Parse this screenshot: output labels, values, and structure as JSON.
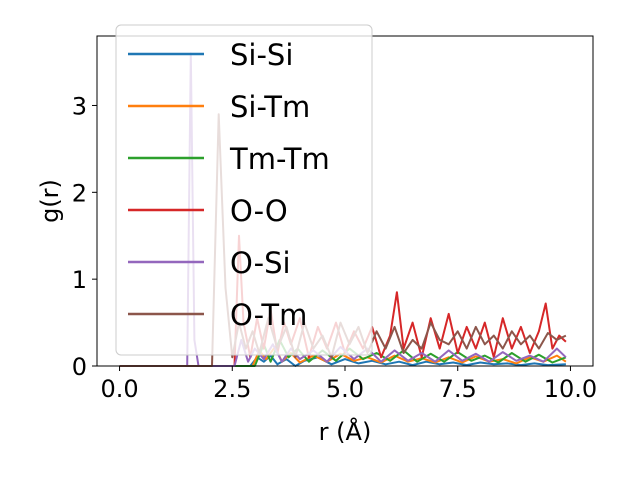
{
  "chart_data": {
    "type": "line",
    "xlabel": "r (Å)",
    "ylabel": "g(r)",
    "xlim": [
      -0.5,
      10.5
    ],
    "ylim": [
      0,
      3.8
    ],
    "xticks": [
      0.0,
      2.5,
      5.0,
      7.5,
      10.0
    ],
    "xtick_labels": [
      "0.0",
      "2.5",
      "5.0",
      "7.5",
      "10.0"
    ],
    "yticks": [
      0,
      1,
      2,
      3
    ],
    "ytick_labels": [
      "0",
      "1",
      "2",
      "3"
    ],
    "grid": false,
    "legend_position": "upper-left",
    "series": [
      {
        "name": "Si-Si",
        "color": "#1f77b4",
        "points": [
          [
            0,
            0
          ],
          [
            2.9,
            0
          ],
          [
            3.05,
            0.1
          ],
          [
            3.2,
            0.05
          ],
          [
            3.35,
            0.12
          ],
          [
            3.5,
            0.02
          ],
          [
            3.7,
            0.08
          ],
          [
            3.9,
            0
          ],
          [
            4.1,
            0.06
          ],
          [
            4.4,
            0.1
          ],
          [
            4.7,
            0.02
          ],
          [
            5.0,
            0.08
          ],
          [
            5.3,
            0.03
          ],
          [
            5.6,
            0.06
          ],
          [
            5.9,
            0.02
          ],
          [
            6.2,
            0.05
          ],
          [
            6.5,
            0.01
          ],
          [
            6.8,
            0.05
          ],
          [
            7.1,
            0.02
          ],
          [
            7.4,
            0.04
          ],
          [
            7.7,
            0.01
          ],
          [
            8.0,
            0.04
          ],
          [
            8.3,
            0.02
          ],
          [
            8.6,
            0.03
          ],
          [
            8.9,
            0.01
          ],
          [
            9.2,
            0.03
          ],
          [
            9.5,
            0.01
          ],
          [
            9.9,
            0.02
          ]
        ]
      },
      {
        "name": "Si-Tm",
        "color": "#ff7f0e",
        "points": [
          [
            0,
            0
          ],
          [
            2.95,
            0
          ],
          [
            3.1,
            0.18
          ],
          [
            3.25,
            0.08
          ],
          [
            3.45,
            0.22
          ],
          [
            3.6,
            0.05
          ],
          [
            3.8,
            0.15
          ],
          [
            4.0,
            0.04
          ],
          [
            4.3,
            0.12
          ],
          [
            4.6,
            0.05
          ],
          [
            4.9,
            0.14
          ],
          [
            5.2,
            0.06
          ],
          [
            5.5,
            0.1
          ],
          [
            5.8,
            0.04
          ],
          [
            6.1,
            0.12
          ],
          [
            6.4,
            0.05
          ],
          [
            6.7,
            0.09
          ],
          [
            7.0,
            0.04
          ],
          [
            7.3,
            0.1
          ],
          [
            7.6,
            0.04
          ],
          [
            7.9,
            0.11
          ],
          [
            8.2,
            0.05
          ],
          [
            8.5,
            0.08
          ],
          [
            8.8,
            0.03
          ],
          [
            9.1,
            0.1
          ],
          [
            9.4,
            0.05
          ],
          [
            9.7,
            0.12
          ],
          [
            9.9,
            0.05
          ]
        ]
      },
      {
        "name": "Tm-Tm",
        "color": "#2ca02c",
        "points": [
          [
            0,
            0
          ],
          [
            3.0,
            0
          ],
          [
            3.2,
            0.25
          ],
          [
            3.35,
            0.05
          ],
          [
            3.55,
            0.3
          ],
          [
            3.75,
            0.1
          ],
          [
            3.95,
            0.2
          ],
          [
            4.2,
            0.05
          ],
          [
            4.5,
            0.18
          ],
          [
            4.8,
            0.06
          ],
          [
            5.1,
            0.2
          ],
          [
            5.4,
            0.08
          ],
          [
            5.7,
            0.15
          ],
          [
            6.0,
            0.06
          ],
          [
            6.3,
            0.18
          ],
          [
            6.6,
            0.05
          ],
          [
            6.9,
            0.14
          ],
          [
            7.2,
            0.05
          ],
          [
            7.5,
            0.16
          ],
          [
            7.8,
            0.06
          ],
          [
            8.1,
            0.12
          ],
          [
            8.4,
            0.04
          ],
          [
            8.7,
            0.15
          ],
          [
            9.0,
            0.05
          ],
          [
            9.3,
            0.13
          ],
          [
            9.6,
            0.04
          ],
          [
            9.9,
            0.1
          ]
        ]
      },
      {
        "name": "O-O",
        "color": "#d62728",
        "points": [
          [
            0,
            0
          ],
          [
            2.55,
            0
          ],
          [
            2.65,
            1.5
          ],
          [
            2.75,
            0.5
          ],
          [
            2.9,
            0.1
          ],
          [
            3.05,
            0.55
          ],
          [
            3.2,
            0.2
          ],
          [
            3.35,
            0.65
          ],
          [
            3.5,
            0.15
          ],
          [
            3.65,
            0.5
          ],
          [
            3.8,
            0.25
          ],
          [
            4.0,
            0.55
          ],
          [
            4.2,
            0.1
          ],
          [
            4.4,
            0.45
          ],
          [
            4.6,
            0.2
          ],
          [
            4.8,
            0.5
          ],
          [
            5.0,
            0.15
          ],
          [
            5.2,
            0.4
          ],
          [
            5.4,
            0.2
          ],
          [
            5.6,
            0.45
          ],
          [
            5.8,
            0.1
          ],
          [
            6.0,
            0.35
          ],
          [
            6.15,
            0.85
          ],
          [
            6.3,
            0.2
          ],
          [
            6.5,
            0.5
          ],
          [
            6.7,
            0.1
          ],
          [
            6.9,
            0.55
          ],
          [
            7.1,
            0.2
          ],
          [
            7.3,
            0.6
          ],
          [
            7.5,
            0.15
          ],
          [
            7.7,
            0.45
          ],
          [
            7.9,
            0.2
          ],
          [
            8.1,
            0.5
          ],
          [
            8.3,
            0.1
          ],
          [
            8.5,
            0.55
          ],
          [
            8.7,
            0.2
          ],
          [
            8.9,
            0.45
          ],
          [
            9.1,
            0.15
          ],
          [
            9.3,
            0.4
          ],
          [
            9.45,
            0.72
          ],
          [
            9.6,
            0.2
          ],
          [
            9.75,
            0.35
          ],
          [
            9.9,
            0.28
          ]
        ]
      },
      {
        "name": "O-Si",
        "color": "#9467bd",
        "points": [
          [
            0,
            0
          ],
          [
            1.5,
            0
          ],
          [
            1.58,
            3.6
          ],
          [
            1.66,
            0.3
          ],
          [
            1.75,
            0
          ],
          [
            2.55,
            0
          ],
          [
            2.7,
            0.3
          ],
          [
            2.85,
            0.05
          ],
          [
            3.0,
            0.2
          ],
          [
            3.2,
            0.08
          ],
          [
            3.4,
            0.25
          ],
          [
            3.6,
            0.05
          ],
          [
            3.8,
            0.2
          ],
          [
            4.0,
            0.08
          ],
          [
            4.3,
            0.18
          ],
          [
            4.6,
            0.05
          ],
          [
            4.9,
            0.22
          ],
          [
            5.2,
            0.08
          ],
          [
            5.5,
            0.2
          ],
          [
            5.8,
            0.05
          ],
          [
            6.1,
            0.18
          ],
          [
            6.4,
            0.06
          ],
          [
            6.7,
            0.15
          ],
          [
            7.0,
            0.05
          ],
          [
            7.3,
            0.18
          ],
          [
            7.6,
            0.06
          ],
          [
            7.9,
            0.14
          ],
          [
            8.2,
            0.05
          ],
          [
            8.5,
            0.16
          ],
          [
            8.8,
            0.06
          ],
          [
            9.1,
            0.12
          ],
          [
            9.4,
            0.05
          ],
          [
            9.7,
            0.2
          ],
          [
            9.9,
            0.1
          ]
        ]
      },
      {
        "name": "O-Tm",
        "color": "#8c564b",
        "points": [
          [
            0,
            0
          ],
          [
            2.05,
            0
          ],
          [
            2.2,
            2.9
          ],
          [
            2.35,
            0.9
          ],
          [
            2.5,
            0.1
          ],
          [
            2.65,
            0.5
          ],
          [
            2.8,
            0.2
          ],
          [
            2.95,
            0.4
          ],
          [
            3.1,
            0.15
          ],
          [
            3.3,
            0.55
          ],
          [
            3.5,
            0.2
          ],
          [
            3.7,
            0.45
          ],
          [
            3.9,
            0.1
          ],
          [
            4.1,
            0.5
          ],
          [
            4.3,
            0.2
          ],
          [
            4.5,
            0.35
          ],
          [
            4.7,
            0.1
          ],
          [
            4.9,
            0.5
          ],
          [
            5.1,
            0.25
          ],
          [
            5.3,
            0.45
          ],
          [
            5.5,
            0.15
          ],
          [
            5.7,
            0.4
          ],
          [
            5.9,
            0.2
          ],
          [
            6.1,
            0.45
          ],
          [
            6.3,
            0.15
          ],
          [
            6.5,
            0.3
          ],
          [
            6.7,
            0.2
          ],
          [
            6.9,
            0.5
          ],
          [
            7.1,
            0.3
          ],
          [
            7.3,
            0.25
          ],
          [
            7.5,
            0.4
          ],
          [
            7.7,
            0.2
          ],
          [
            7.9,
            0.45
          ],
          [
            8.1,
            0.25
          ],
          [
            8.3,
            0.35
          ],
          [
            8.5,
            0.2
          ],
          [
            8.7,
            0.4
          ],
          [
            8.9,
            0.25
          ],
          [
            9.1,
            0.35
          ],
          [
            9.3,
            0.2
          ],
          [
            9.5,
            0.38
          ],
          [
            9.7,
            0.3
          ],
          [
            9.9,
            0.35
          ]
        ]
      }
    ]
  }
}
